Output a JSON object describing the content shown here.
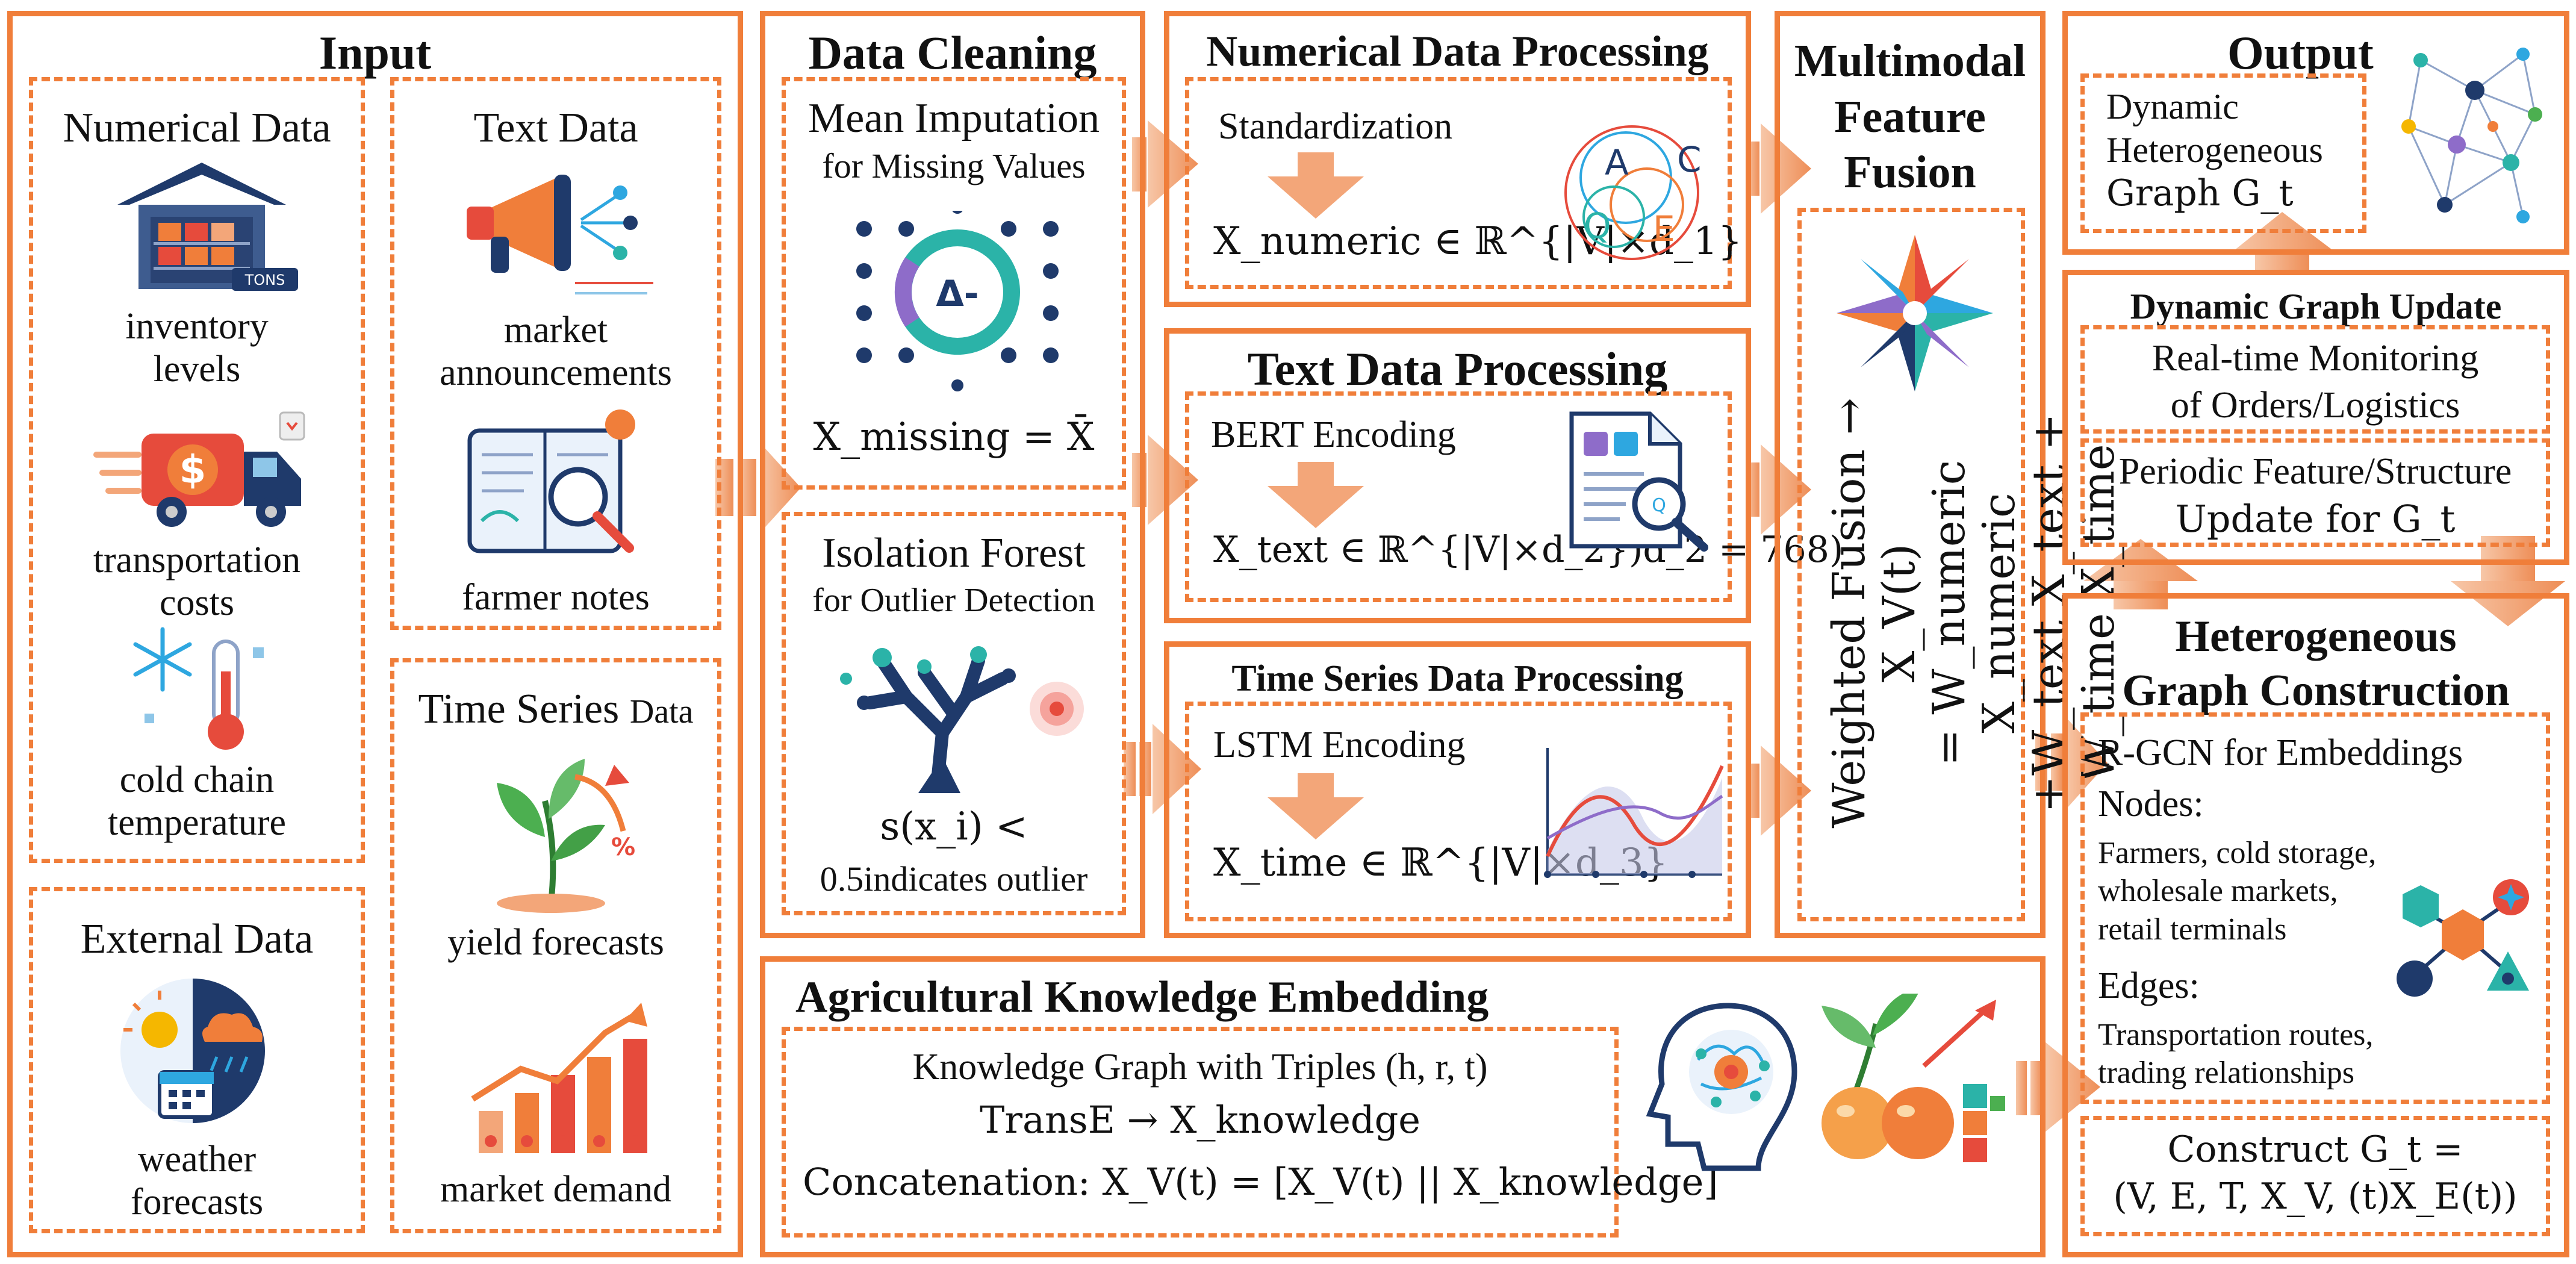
{
  "input": {
    "title": "Input",
    "numerical": {
      "title": "Numerical Data",
      "items": [
        "inventory levels",
        "transportation costs",
        "cold chain temperature"
      ],
      "badge": "TONS"
    },
    "text": {
      "title": "Text Data",
      "items": [
        "market announcements",
        "farmer notes"
      ]
    },
    "time_series": {
      "title": "Time Series",
      "title_suffix": "Data",
      "items": [
        "yield forecasts",
        "market demand"
      ]
    },
    "external": {
      "title": "External Data",
      "items": [
        "weather forecasts"
      ]
    }
  },
  "cleaning": {
    "title": "Data Cleaning",
    "mean": {
      "line1": "Mean Imputation",
      "line2": "for Missing Values",
      "formula": "X_missing = X̄",
      "icon_text": "Δ-"
    },
    "forest": {
      "line1": "Isolation Forest",
      "line2": "for Outlier Detection",
      "formula1": "s(x_i) <",
      "formula2": "0.5indicates outlier"
    }
  },
  "numerical_proc": {
    "title": "Numerical Data Processing",
    "step": "Standardization",
    "formula": "X_numeric ∈ ℝ^{|V|×d_1}",
    "letters": [
      "A",
      "C",
      "Q",
      "E"
    ]
  },
  "text_proc": {
    "title": "Text Data Processing",
    "step": "BERT Encoding",
    "formula": "X_text ∈ ℝ^{|V|×d_2})d_2 = 768)"
  },
  "time_proc": {
    "title": "Time Series Data Processing",
    "step": "LSTM Encoding",
    "formula": "X_time ∈ ℝ^{|V|×d_3}"
  },
  "fusion": {
    "title_lines": [
      "Multimodal",
      "Feature",
      "Fusion"
    ],
    "formula_lines": [
      "Weighted Fusion → X_V(t)",
      "= W_numeric X_numeric",
      "+W_text X_text + W_time X_time"
    ]
  },
  "knowledge": {
    "title": "Agricultural Knowledge Embedding",
    "line1": "Knowledge Graph with Triples (h, r, t)",
    "line2": "TransE → X_knowledge",
    "line3": "Concatenation: X_V(t) = [X_V(t) || X_knowledge]"
  },
  "output": {
    "title": "Output",
    "lines": [
      "Dynamic",
      "Heterogeneous",
      "Graph G_t"
    ]
  },
  "dynamic_update": {
    "title": "Dynamic Graph Update",
    "box1": [
      "Real-time Monitoring",
      "of Orders/Logistics"
    ],
    "box2": [
      "Periodic Feature/Structure",
      "Update for G_t"
    ]
  },
  "hetero": {
    "title_lines": [
      "Heterogeneous",
      "Graph Construction"
    ],
    "rgcn": "R-GCN for Embeddings",
    "nodes_label": "Nodes:",
    "nodes": [
      "Farmers, cold storage,",
      "wholesale markets,",
      "retail terminals"
    ],
    "edges_label": "Edges:",
    "edges": [
      "Transportation routes,",
      "trading relationships"
    ],
    "construct_line1": "Construct G_t =",
    "construct_line2": "(V, E, T, X_V, (t)X_E(t))"
  },
  "colors": {
    "accent": "#F07E3A",
    "arrow": "#F3A679",
    "navy": "#1F3A6B",
    "teal": "#2BB3A8",
    "red": "#E64B3C"
  }
}
